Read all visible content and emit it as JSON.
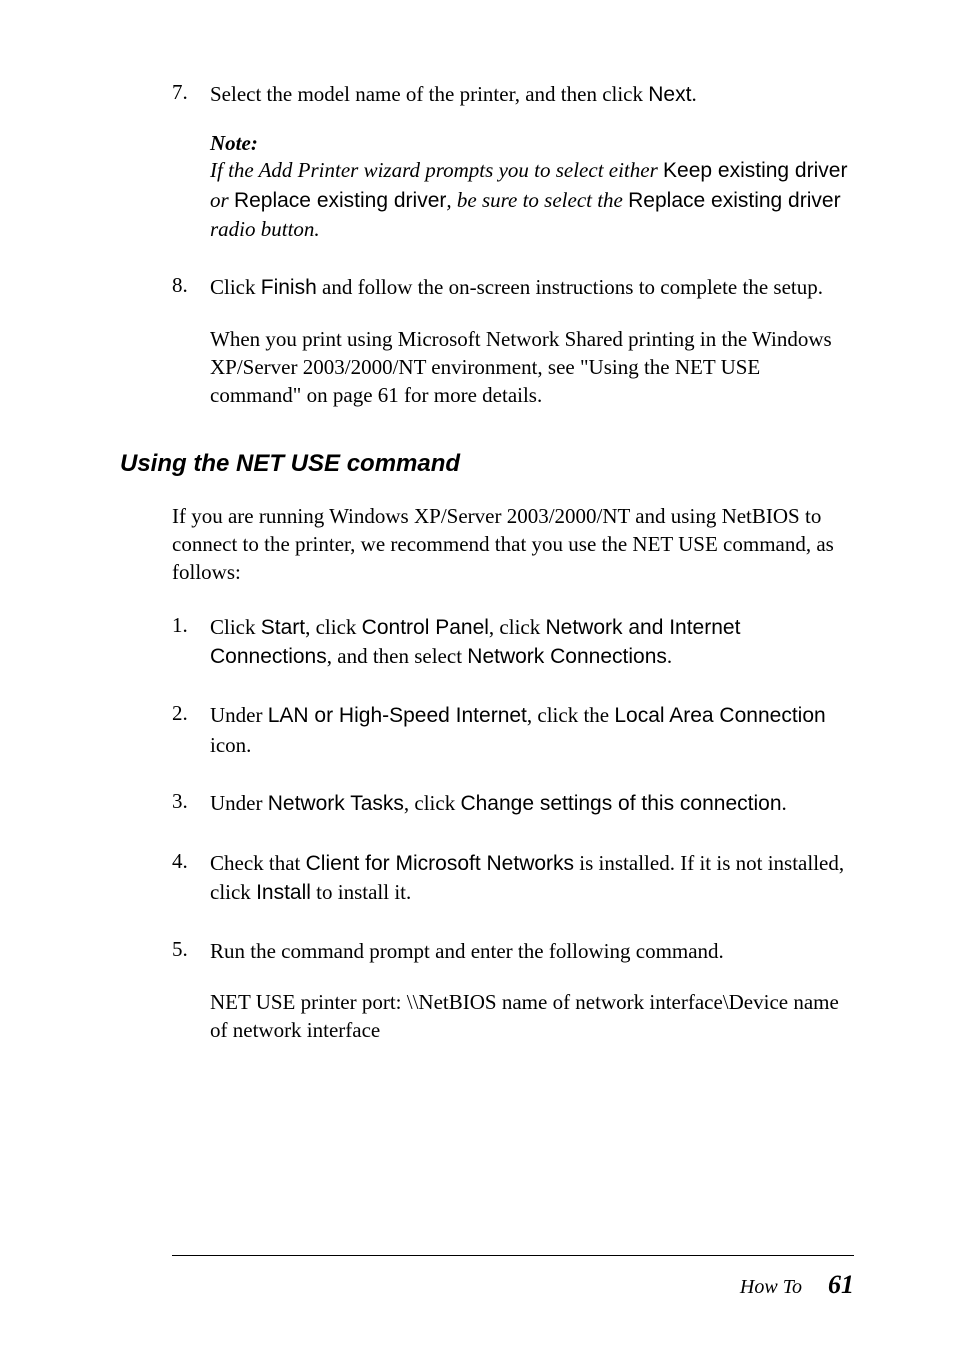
{
  "steps_top": [
    {
      "num": "7.",
      "text_parts": [
        {
          "t": "Select the model name of the printer, and then click ",
          "cls": ""
        },
        {
          "t": "Next",
          "cls": "ui"
        },
        {
          "t": ".",
          "cls": ""
        }
      ],
      "note": {
        "label": "Note:",
        "body_parts": [
          {
            "t": "If the Add Printer wizard prompts you to select either ",
            "cls": ""
          },
          {
            "t": "Keep existing driver",
            "cls": "ui"
          },
          {
            "t": " or ",
            "cls": ""
          },
          {
            "t": "Replace existing driver",
            "cls": "ui"
          },
          {
            "t": ", be sure to select the ",
            "cls": ""
          },
          {
            "t": "Replace existing driver",
            "cls": "ui"
          },
          {
            "t": " radio button.",
            "cls": ""
          }
        ]
      }
    },
    {
      "num": "8.",
      "text_parts": [
        {
          "t": "Click ",
          "cls": ""
        },
        {
          "t": "Finish",
          "cls": "ui"
        },
        {
          "t": " and follow the on-screen instructions to complete the setup.",
          "cls": ""
        }
      ],
      "continuation": "When you print using Microsoft Network Shared printing in the Windows XP/Server 2003/2000/NT environment, see \"Using the NET USE command\" on page 61 for more details."
    }
  ],
  "section": {
    "heading": "Using the NET USE command",
    "intro": "If you are running Windows XP/Server 2003/2000/NT and using NetBIOS to connect to the printer, we recommend that you use the NET USE command, as follows:",
    "steps": [
      {
        "num": "1.",
        "text_parts": [
          {
            "t": "Click ",
            "cls": ""
          },
          {
            "t": "Start",
            "cls": "ui"
          },
          {
            "t": ", click ",
            "cls": ""
          },
          {
            "t": "Control Panel",
            "cls": "ui"
          },
          {
            "t": ", click ",
            "cls": ""
          },
          {
            "t": "Network and Internet Connections",
            "cls": "ui"
          },
          {
            "t": ", and then select ",
            "cls": ""
          },
          {
            "t": "Network Connections",
            "cls": "ui"
          },
          {
            "t": ".",
            "cls": ""
          }
        ]
      },
      {
        "num": "2.",
        "text_parts": [
          {
            "t": "Under ",
            "cls": ""
          },
          {
            "t": "LAN or High-Speed Internet",
            "cls": "ui"
          },
          {
            "t": ", click the ",
            "cls": ""
          },
          {
            "t": "Local Area Connection",
            "cls": "ui"
          },
          {
            "t": " icon.",
            "cls": ""
          }
        ]
      },
      {
        "num": "3.",
        "text_parts": [
          {
            "t": "Under ",
            "cls": ""
          },
          {
            "t": "Network Tasks",
            "cls": "ui"
          },
          {
            "t": ", click ",
            "cls": ""
          },
          {
            "t": "Change settings of this connection",
            "cls": "ui"
          },
          {
            "t": ".",
            "cls": ""
          }
        ]
      },
      {
        "num": "4.",
        "text_parts": [
          {
            "t": "Check that ",
            "cls": ""
          },
          {
            "t": "Client for Microsoft Networks",
            "cls": "ui"
          },
          {
            "t": " is installed. If it is not installed, click ",
            "cls": ""
          },
          {
            "t": "Install",
            "cls": "ui"
          },
          {
            "t": " to install it.",
            "cls": ""
          }
        ]
      },
      {
        "num": "5.",
        "text_parts": [
          {
            "t": "Run the command prompt and enter the following command.",
            "cls": ""
          }
        ],
        "continuation": "NET USE printer port: \\\\NetBIOS name of network interface\\Device name of network interface"
      }
    ]
  },
  "footer": {
    "title": "How To",
    "page": "61"
  }
}
